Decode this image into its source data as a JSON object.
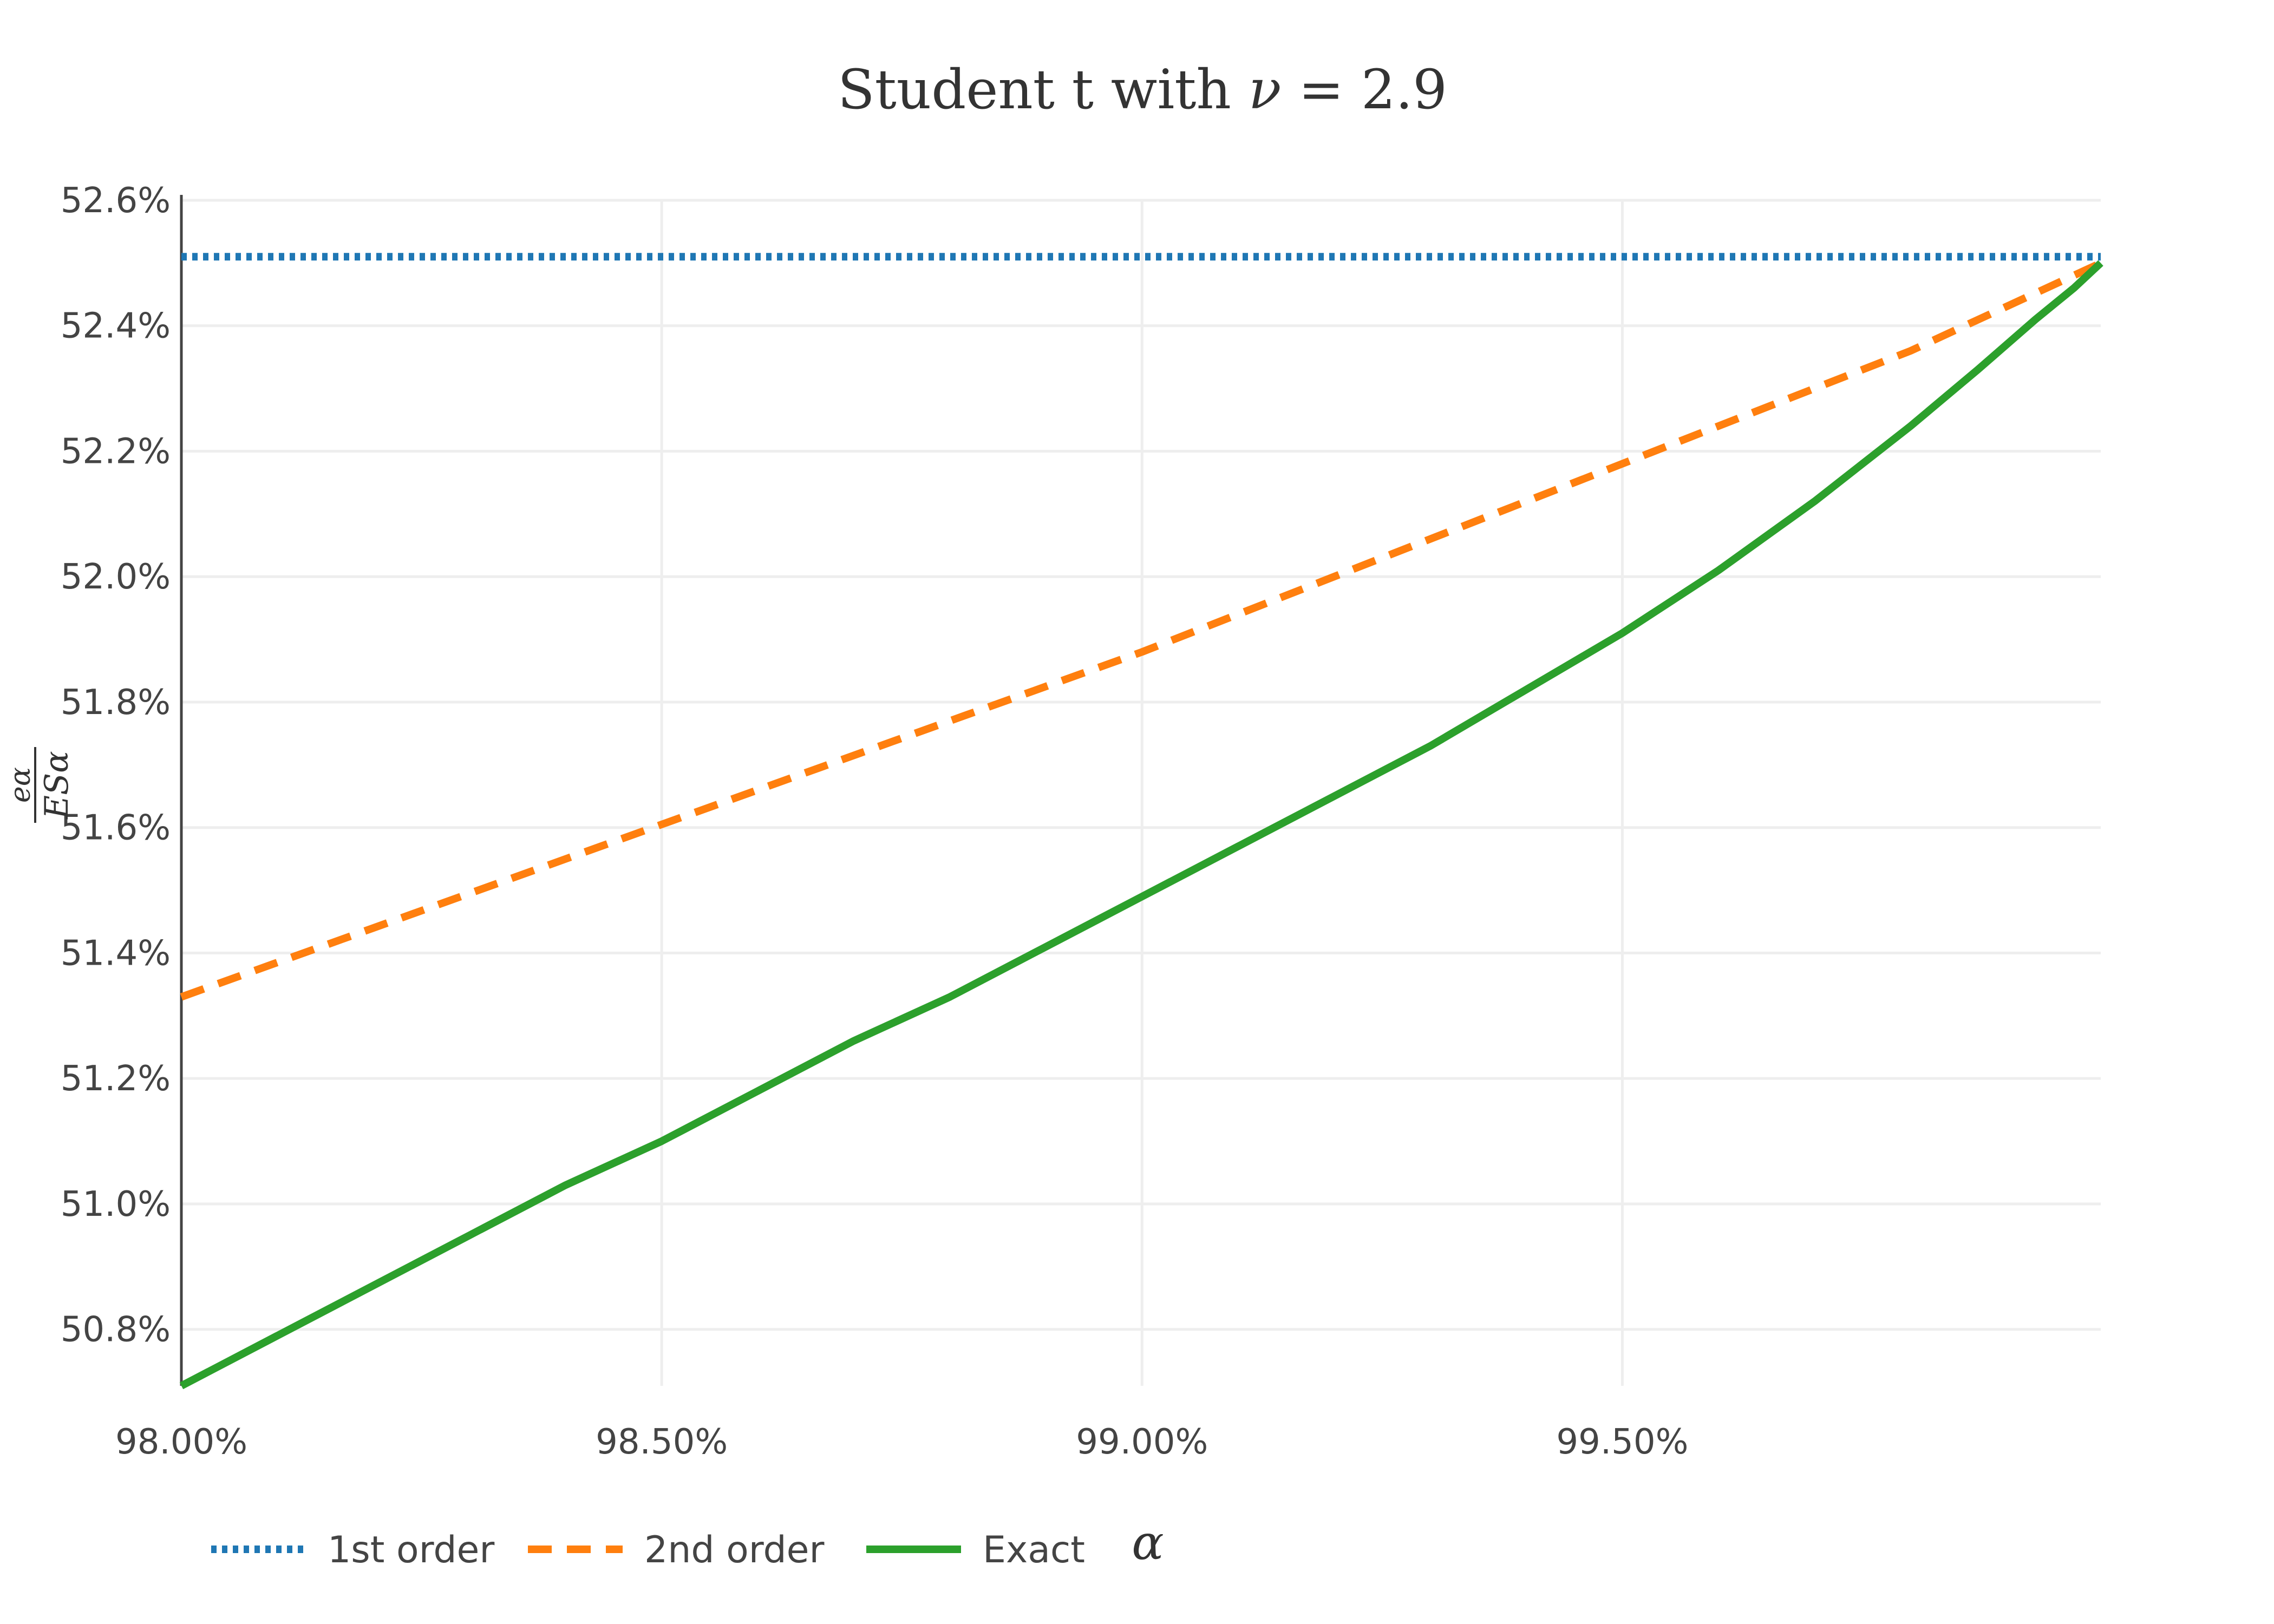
{
  "chart_data": {
    "type": "line",
    "title": "Student t with ν = 2.9",
    "title_parts": {
      "prefix": "Student t with ",
      "var": "ν",
      "rest": " = 2.9"
    },
    "xlabel": "α",
    "ylabel": {
      "numerator": "eα",
      "denominator": "ESα"
    },
    "xlim": [
      98.0,
      99.998
    ],
    "ylim": [
      50.71,
      52.6
    ],
    "x_ticks": [
      98.0,
      98.5,
      99.0,
      99.5
    ],
    "x_tick_labels": [
      "98.00%",
      "98.50%",
      "99.00%",
      "99.50%"
    ],
    "y_ticks": [
      50.8,
      51.0,
      51.2,
      51.4,
      51.6,
      51.8,
      52.0,
      52.2,
      52.4,
      52.6
    ],
    "y_tick_labels": [
      "50.8%",
      "51.0%",
      "51.2%",
      "51.4%",
      "51.6%",
      "51.8%",
      "52.0%",
      "52.2%",
      "52.4%",
      "52.6%"
    ],
    "grid": true,
    "legend_position": "bottom-left",
    "series": [
      {
        "name": "1st order",
        "color": "#1f77b4",
        "dash": "dot",
        "x": [
          98.0,
          99.998
        ],
        "y": [
          52.51,
          52.51
        ]
      },
      {
        "name": "2nd order",
        "color": "#ff7f0e",
        "dash": "dash",
        "x": [
          98.0,
          98.2,
          98.4,
          98.6,
          98.8,
          99.0,
          99.2,
          99.4,
          99.6,
          99.8,
          99.998
        ],
        "y": [
          51.33,
          51.44,
          51.55,
          51.66,
          51.77,
          51.88,
          52.0,
          52.12,
          52.24,
          52.36,
          52.5
        ]
      },
      {
        "name": "Exact",
        "color": "#2ca02c",
        "dash": "solid",
        "x": [
          98.0,
          98.1,
          98.2,
          98.3,
          98.4,
          98.5,
          98.6,
          98.7,
          98.8,
          98.9,
          99.0,
          99.1,
          99.2,
          99.3,
          99.4,
          99.5,
          99.6,
          99.7,
          99.8,
          99.87,
          99.93,
          99.97,
          99.998
        ],
        "y": [
          50.71,
          50.79,
          50.87,
          50.95,
          51.03,
          51.1,
          51.18,
          51.26,
          51.33,
          51.41,
          51.49,
          51.57,
          51.65,
          51.73,
          51.82,
          51.91,
          52.01,
          52.12,
          52.24,
          52.33,
          52.41,
          52.46,
          52.5
        ]
      }
    ]
  }
}
